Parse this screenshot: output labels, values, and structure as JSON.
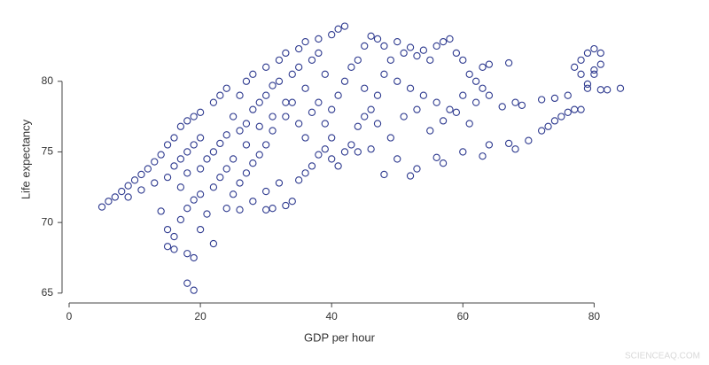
{
  "chart_data": {
    "type": "scatter",
    "x_label": "GDP per hour",
    "y_label": "Life expectancy",
    "watermark": "SCIENCEAQ.COM",
    "color": "#2e3a8f",
    "xlim": [
      0,
      84
    ],
    "xticks": [
      0,
      20,
      40,
      60,
      80
    ],
    "ylim": [
      64.3,
      84
    ],
    "yticks": [
      65,
      70,
      75,
      80
    ],
    "x": [
      5,
      6,
      7,
      8,
      9,
      10,
      11,
      12,
      13,
      14,
      15,
      16,
      17,
      18,
      19,
      9,
      11,
      13,
      15,
      16,
      17,
      18,
      19,
      20,
      14,
      15,
      16,
      17,
      18,
      19,
      20,
      15,
      16,
      18,
      19,
      18,
      19,
      20,
      21,
      22,
      17,
      18,
      20,
      21,
      22,
      23,
      24,
      22,
      23,
      24,
      20,
      22,
      23,
      24,
      26,
      27,
      28,
      30,
      32,
      33,
      35,
      36,
      38,
      40,
      41,
      42,
      25,
      26,
      27,
      28,
      29,
      30,
      31,
      32,
      34,
      35,
      37,
      38,
      39,
      36,
      34,
      33,
      31,
      30,
      29,
      28,
      27,
      26,
      25,
      24,
      26,
      28,
      30,
      32,
      33,
      34,
      35,
      36,
      37,
      38,
      39,
      40,
      30,
      31,
      25,
      27,
      29,
      31,
      33,
      35,
      36,
      37,
      38,
      39,
      40,
      41,
      42,
      43,
      44,
      40,
      41,
      42,
      43,
      44,
      45,
      46,
      47,
      48,
      45,
      46,
      47,
      48,
      49,
      50,
      51,
      52,
      53,
      54,
      55,
      56,
      57,
      58,
      59,
      60,
      61,
      62,
      63,
      64,
      50,
      52,
      54,
      56,
      58,
      60,
      62,
      63,
      64,
      45,
      47,
      49,
      51,
      53,
      55,
      57,
      59,
      61,
      44,
      46,
      48,
      50,
      52,
      53,
      56,
      57,
      60,
      63,
      64,
      66,
      67,
      68,
      68,
      69,
      67,
      70,
      72,
      73,
      74,
      75,
      76,
      77,
      78,
      72,
      74,
      76,
      77,
      78,
      79,
      80,
      81,
      78,
      79,
      80,
      81,
      82,
      84,
      79,
      81,
      80
    ],
    "y": [
      71.1,
      71.5,
      71.8,
      72.2,
      72.6,
      73,
      73.4,
      73.8,
      74.3,
      74.8,
      75.5,
      76,
      76.8,
      77.2,
      77.5,
      71.8,
      72.3,
      72.8,
      73.2,
      74,
      74.5,
      75,
      75.5,
      76,
      70.8,
      69.5,
      69,
      70.2,
      71,
      71.6,
      72,
      68.3,
      68.1,
      67.8,
      67.5,
      65.7,
      65.2,
      69.5,
      70.6,
      68.5,
      72.5,
      73.5,
      73.8,
      74.5,
      75,
      75.6,
      76.2,
      72.5,
      73.2,
      73.8,
      77.8,
      78.5,
      79,
      79.5,
      79,
      80,
      80.5,
      81,
      81.5,
      82,
      82.3,
      82.8,
      83,
      83.3,
      83.7,
      83.9,
      77.5,
      76.5,
      77,
      78,
      78.5,
      79,
      79.7,
      80,
      80.5,
      81,
      81.5,
      82,
      80.5,
      79.5,
      78.5,
      77.5,
      76.5,
      75.5,
      74.8,
      74.2,
      73.5,
      72.8,
      72,
      71,
      70.9,
      71.5,
      72.2,
      72.8,
      71.2,
      71.5,
      73,
      73.5,
      74,
      74.8,
      75.2,
      76,
      70.9,
      71,
      74.5,
      75.5,
      76.8,
      77.5,
      78.5,
      77,
      76,
      77.8,
      78.5,
      77,
      78,
      79,
      80,
      81,
      81.5,
      74.5,
      74,
      75,
      75.5,
      76.8,
      77.5,
      78,
      79,
      80.5,
      82.5,
      83.2,
      83,
      82.5,
      81.5,
      82.8,
      82,
      82.4,
      81.8,
      82.2,
      81.5,
      82.5,
      82.8,
      83,
      82,
      81.5,
      80.5,
      80,
      81,
      81.2,
      80,
      79.5,
      79,
      78.5,
      78,
      79,
      78.5,
      79.5,
      79,
      79.5,
      77,
      76,
      77.5,
      78,
      76.5,
      77.2,
      77.8,
      77,
      75,
      75.2,
      73.4,
      74.5,
      73.3,
      73.8,
      74.6,
      74.2,
      75,
      74.7,
      75.5,
      78.2,
      75.6,
      75.2,
      78.5,
      78.3,
      81.3,
      75.8,
      76.5,
      76.8,
      77.2,
      77.5,
      77.8,
      78,
      78,
      78.7,
      78.8,
      79,
      81,
      81.5,
      82,
      82.3,
      82,
      80.5,
      79.5,
      80.5,
      79.4,
      79.4,
      79.5,
      79.8,
      81.2,
      80.8
    ]
  }
}
